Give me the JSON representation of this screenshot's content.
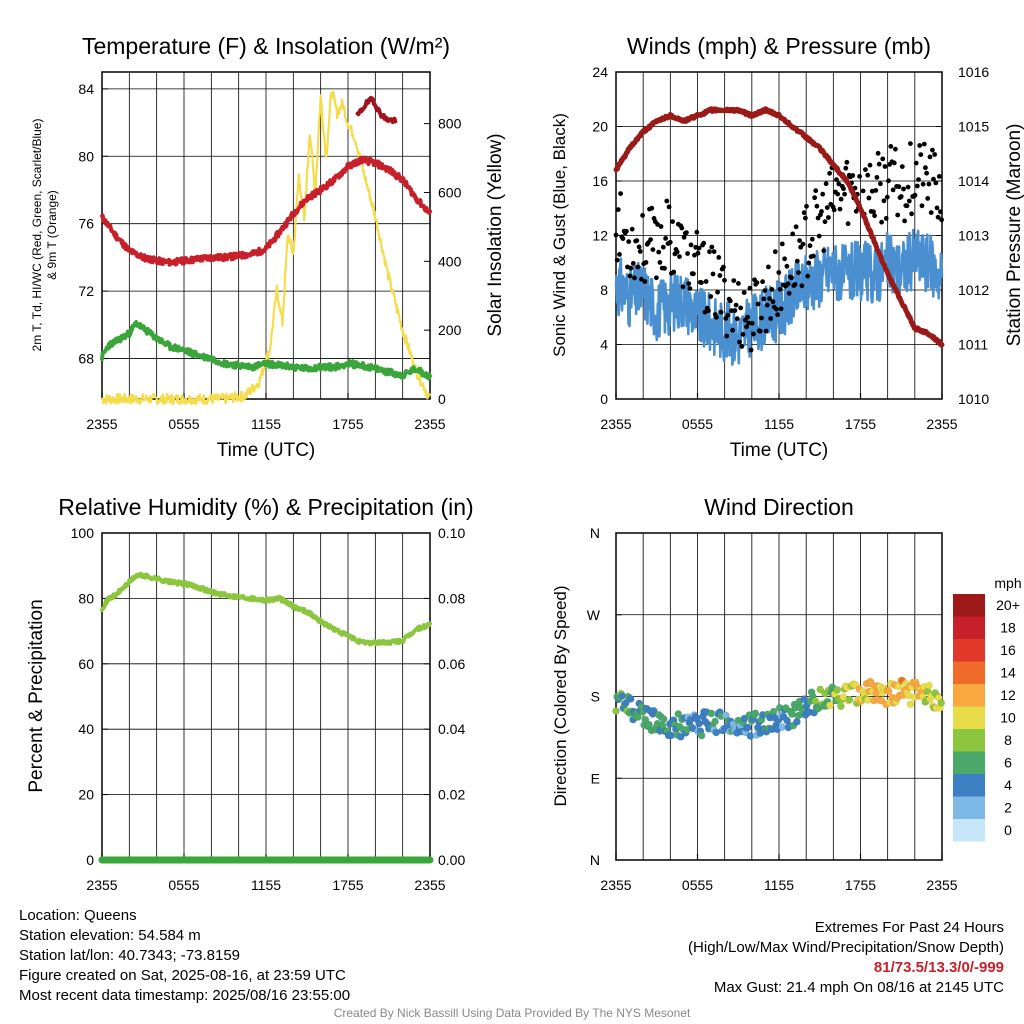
{
  "chart_data": [
    {
      "type": "line",
      "title": "Temperature (F) & Insolation (W/m²)",
      "xlabel": "Time (UTC)",
      "ylabel_lines": [
        "2m T, Td, HI/WC (Red, Green, Scarlet/Blue)",
        "& 9m T (Orange)"
      ],
      "y2label": "Solar Insolation (Yellow)",
      "x_ticks": [
        "2355",
        "0555",
        "1155",
        "1755",
        "2355"
      ],
      "y_ticks": [
        "68",
        "72",
        "76",
        "80",
        "84"
      ],
      "y2_ticks": [
        "0",
        "200",
        "400",
        "600",
        "800"
      ],
      "ylim": [
        65.6,
        85
      ],
      "y2lim": [
        0,
        950
      ],
      "xlim": [
        0,
        24
      ],
      "series": [
        {
          "color": "#c8202a",
          "axis": "left",
          "values": [
            [
              0,
              76.4
            ],
            [
              1,
              75.3
            ],
            [
              2,
              74.4
            ],
            [
              3,
              74.0
            ],
            [
              4,
              73.8
            ],
            [
              5,
              73.7
            ],
            [
              6,
              73.8
            ],
            [
              7,
              73.9
            ],
            [
              8,
              74.0
            ],
            [
              9,
              74.0
            ],
            [
              10,
              74.1
            ],
            [
              11,
              74.2
            ],
            [
              12,
              74.5
            ],
            [
              13,
              75.5
            ],
            [
              14,
              76.6
            ],
            [
              15,
              77.5
            ],
            [
              16,
              78.0
            ],
            [
              17,
              78.6
            ],
            [
              18,
              79.4
            ],
            [
              19,
              79.8
            ],
            [
              20,
              79.6
            ],
            [
              21,
              79.2
            ],
            [
              22,
              78.6
            ],
            [
              23,
              77.5
            ],
            [
              24,
              76.6
            ]
          ]
        },
        {
          "color": "#a0121c",
          "axis": "left",
          "values": [
            [
              18.7,
              82.4
            ],
            [
              19.3,
              83.1
            ],
            [
              19.8,
              83.4
            ],
            [
              20.3,
              82.6
            ],
            [
              20.8,
              82.2
            ],
            [
              21.5,
              82.1
            ]
          ]
        },
        {
          "color": "#3aa53a",
          "axis": "left",
          "values": [
            [
              0,
              68.1
            ],
            [
              0.5,
              68.8
            ],
            [
              1,
              69.0
            ],
            [
              2,
              69.5
            ],
            [
              2.5,
              70.1
            ],
            [
              3,
              69.8
            ],
            [
              4,
              69.2
            ],
            [
              5,
              68.7
            ],
            [
              6,
              68.5
            ],
            [
              7,
              68.2
            ],
            [
              8,
              68.0
            ],
            [
              9,
              67.7
            ],
            [
              10,
              67.6
            ],
            [
              11,
              67.5
            ],
            [
              12,
              67.7
            ],
            [
              13,
              67.6
            ],
            [
              14,
              67.5
            ],
            [
              15,
              67.4
            ],
            [
              16,
              67.5
            ],
            [
              17,
              67.5
            ],
            [
              18,
              67.7
            ],
            [
              19,
              67.6
            ],
            [
              20,
              67.4
            ],
            [
              21,
              67.2
            ],
            [
              22,
              67.0
            ],
            [
              23,
              67.4
            ],
            [
              24,
              66.9
            ]
          ]
        },
        {
          "color": "#f4dc4a",
          "axis": "right",
          "values": [
            [
              0,
              0
            ],
            [
              6,
              0
            ],
            [
              9,
              0
            ],
            [
              10.5,
              10
            ],
            [
              11.5,
              50
            ],
            [
              12.3,
              150
            ],
            [
              12.8,
              320
            ],
            [
              13.2,
              220
            ],
            [
              13.6,
              480
            ],
            [
              14,
              420
            ],
            [
              14.4,
              650
            ],
            [
              14.8,
              520
            ],
            [
              15.2,
              780
            ],
            [
              15.6,
              600
            ],
            [
              16,
              880
            ],
            [
              16.4,
              700
            ],
            [
              16.8,
              900
            ],
            [
              17.2,
              830
            ],
            [
              17.6,
              860
            ],
            [
              18,
              800
            ],
            [
              18.5,
              760
            ],
            [
              19,
              680
            ],
            [
              20,
              530
            ],
            [
              21,
              350
            ],
            [
              22,
              200
            ],
            [
              23,
              80
            ],
            [
              24,
              0
            ]
          ]
        }
      ]
    },
    {
      "type": "line",
      "title": "Winds (mph) & Pressure (mb)",
      "xlabel": "Time (UTC)",
      "ylabel": "Sonic Wind & Gust (Blue, Black)",
      "y2label": "Station Pressure (Maroon)",
      "x_ticks": [
        "2355",
        "0555",
        "1155",
        "1755",
        "2355"
      ],
      "y_ticks": [
        "0",
        "4",
        "8",
        "12",
        "16",
        "20",
        "24"
      ],
      "y2_ticks": [
        "1010",
        "1011",
        "1012",
        "1013",
        "1014",
        "1015",
        "1016"
      ],
      "ylim": [
        0,
        24
      ],
      "y2lim": [
        1010,
        1016
      ],
      "xlim": [
        0,
        24
      ],
      "series": [
        {
          "color": "#4a90d0",
          "axis": "left",
          "values": [
            [
              0,
              8.5
            ],
            [
              1,
              7.5
            ],
            [
              2,
              8.0
            ],
            [
              3,
              6.5
            ],
            [
              4,
              7.0
            ],
            [
              5,
              7.5
            ],
            [
              6,
              6.0
            ],
            [
              7,
              5.5
            ],
            [
              8,
              5.0
            ],
            [
              9,
              4.5
            ],
            [
              10,
              5.5
            ],
            [
              11,
              6.0
            ],
            [
              12,
              6.5
            ],
            [
              13,
              7.5
            ],
            [
              14,
              8.5
            ],
            [
              15,
              9.0
            ],
            [
              16,
              9.5
            ],
            [
              17,
              9.0
            ],
            [
              18,
              9.5
            ],
            [
              19,
              9.0
            ],
            [
              20,
              10.0
            ],
            [
              21,
              9.5
            ],
            [
              22,
              10.5
            ],
            [
              23,
              10.0
            ],
            [
              24,
              9.0
            ]
          ]
        },
        {
          "color": "#000000",
          "axis": "left",
          "values": [
            [
              0,
              13.0
            ],
            [
              1,
              11.5
            ],
            [
              2,
              11.0
            ],
            [
              3,
              11.5
            ],
            [
              4,
              12.0
            ],
            [
              5,
              10.5
            ],
            [
              6,
              9.5
            ],
            [
              7,
              8.5
            ],
            [
              8,
              7.5
            ],
            [
              9,
              6.5
            ],
            [
              10,
              6.0
            ],
            [
              11,
              7.5
            ],
            [
              12,
              8.5
            ],
            [
              13,
              10.0
            ],
            [
              14,
              11.5
            ],
            [
              15,
              13.0
            ],
            [
              16,
              14.5
            ],
            [
              17,
              15.5
            ],
            [
              18,
              15.5
            ],
            [
              19,
              15.0
            ],
            [
              20,
              16.0
            ],
            [
              21,
              15.5
            ],
            [
              22,
              16.5
            ],
            [
              23,
              16.0
            ],
            [
              24,
              15.0
            ]
          ]
        },
        {
          "color": "#9a1a1a",
          "axis": "right",
          "values": [
            [
              0,
              1014.2
            ],
            [
              1,
              1014.6
            ],
            [
              2,
              1014.9
            ],
            [
              3,
              1015.1
            ],
            [
              4,
              1015.2
            ],
            [
              5,
              1015.1
            ],
            [
              6,
              1015.2
            ],
            [
              7,
              1015.3
            ],
            [
              8,
              1015.3
            ],
            [
              9,
              1015.3
            ],
            [
              10,
              1015.2
            ],
            [
              11,
              1015.3
            ],
            [
              12,
              1015.2
            ],
            [
              13,
              1015.0
            ],
            [
              14,
              1014.8
            ],
            [
              15,
              1014.6
            ],
            [
              16,
              1014.3
            ],
            [
              17,
              1014.0
            ],
            [
              18,
              1013.5
            ],
            [
              19,
              1012.9
            ],
            [
              20,
              1012.3
            ],
            [
              21,
              1011.8
            ],
            [
              22,
              1011.3
            ],
            [
              23,
              1011.2
            ],
            [
              24,
              1011.0
            ]
          ]
        }
      ]
    },
    {
      "type": "line",
      "title": "Relative Humidity (%) & Precipitation (in)",
      "ylabel": "Percent & Precipitation",
      "x_ticks": [
        "2355",
        "0555",
        "1155",
        "1755",
        "2355"
      ],
      "y_ticks": [
        "0",
        "20",
        "40",
        "60",
        "80",
        "100"
      ],
      "y2_ticks": [
        "0.00",
        "0.02",
        "0.04",
        "0.06",
        "0.08",
        "0.10"
      ],
      "ylim": [
        0,
        100
      ],
      "y2lim": [
        0,
        0.1
      ],
      "xlim": [
        0,
        24
      ],
      "series": [
        {
          "color": "#8cc63f",
          "axis": "left",
          "values": [
            [
              0,
              77
            ],
            [
              0.5,
              80
            ],
            [
              1,
              81
            ],
            [
              2,
              85
            ],
            [
              2.5,
              87
            ],
            [
              3,
              87
            ],
            [
              4,
              86
            ],
            [
              5,
              85
            ],
            [
              6,
              84.5
            ],
            [
              7,
              83.5
            ],
            [
              8,
              82
            ],
            [
              9,
              81
            ],
            [
              10,
              80.5
            ],
            [
              11,
              80
            ],
            [
              12,
              79.5
            ],
            [
              13,
              80
            ],
            [
              14,
              77.5
            ],
            [
              15,
              76
            ],
            [
              16,
              73
            ],
            [
              17,
              70.5
            ],
            [
              18,
              68.5
            ],
            [
              19,
              66.5
            ],
            [
              20,
              66.5
            ],
            [
              21,
              66.5
            ],
            [
              22,
              67
            ],
            [
              23,
              70.5
            ],
            [
              24,
              72
            ]
          ]
        },
        {
          "color": "#3aa53a",
          "axis": "right",
          "values": [
            [
              0,
              0
            ],
            [
              24,
              0
            ]
          ]
        }
      ]
    },
    {
      "type": "scatter",
      "title": "Wind Direction",
      "ylabel": "Direction (Colored By Speed)",
      "x_ticks": [
        "2355",
        "0555",
        "1155",
        "1755",
        "2355"
      ],
      "y_ticks": [
        "N",
        "E",
        "S",
        "W",
        "N"
      ],
      "ylim": [
        0,
        360
      ],
      "xlim": [
        0,
        24
      ],
      "direction_trend_deg": [
        [
          0,
          175
        ],
        [
          1,
          170
        ],
        [
          2,
          158
        ],
        [
          3,
          150
        ],
        [
          4,
          150
        ],
        [
          5,
          148
        ],
        [
          6,
          147
        ],
        [
          7,
          155
        ],
        [
          8,
          150
        ],
        [
          9,
          148
        ],
        [
          10,
          148
        ],
        [
          11,
          152
        ],
        [
          12,
          155
        ],
        [
          13,
          160
        ],
        [
          14,
          170
        ],
        [
          15,
          175
        ],
        [
          16,
          180
        ],
        [
          17,
          182
        ],
        [
          18,
          185
        ],
        [
          19,
          185
        ],
        [
          20,
          183
        ],
        [
          21,
          185
        ],
        [
          22,
          183
        ],
        [
          23,
          180
        ],
        [
          24,
          178
        ]
      ],
      "speed_trend_mph": [
        [
          0,
          6
        ],
        [
          4,
          5
        ],
        [
          8,
          4
        ],
        [
          12,
          4
        ],
        [
          14,
          5
        ],
        [
          16,
          8
        ],
        [
          18,
          10
        ],
        [
          19,
          11
        ],
        [
          20,
          11
        ],
        [
          21,
          12
        ],
        [
          22,
          11
        ],
        [
          24,
          9
        ]
      ],
      "colorbar": {
        "unit": "mph",
        "labels": [
          "20+",
          "18",
          "16",
          "14",
          "12",
          "10",
          "8",
          "6",
          "4",
          "2",
          "0"
        ],
        "colors": [
          "#9e1a1a",
          "#c8202a",
          "#e2382a",
          "#f06a2a",
          "#f7a840",
          "#e8dc48",
          "#8cc63f",
          "#4aa86a",
          "#3c7fc2",
          "#7eb8e6",
          "#c6e6f8"
        ]
      }
    }
  ],
  "footer": {
    "location": "Location: Queens",
    "elevation": "Station elevation: 54.584 m",
    "latlon": "Station lat/lon: 40.7343; -73.8159",
    "created": "Figure created on Sat, 2025-08-16, at 23:59 UTC",
    "recent": "Most recent data timestamp: 2025/08/16 23:55:00",
    "extremes_title": "Extremes For Past 24 Hours",
    "extremes_desc": "(High/Low/Max Wind/Precipitation/Snow Depth)",
    "extremes_values": "81/73.5/13.3/0/-999",
    "max_gust": "Max Gust: 21.4 mph On 08/16 at 2145 UTC",
    "credit": "Created By Nick Bassill Using Data Provided By The NYS Mesonet"
  }
}
